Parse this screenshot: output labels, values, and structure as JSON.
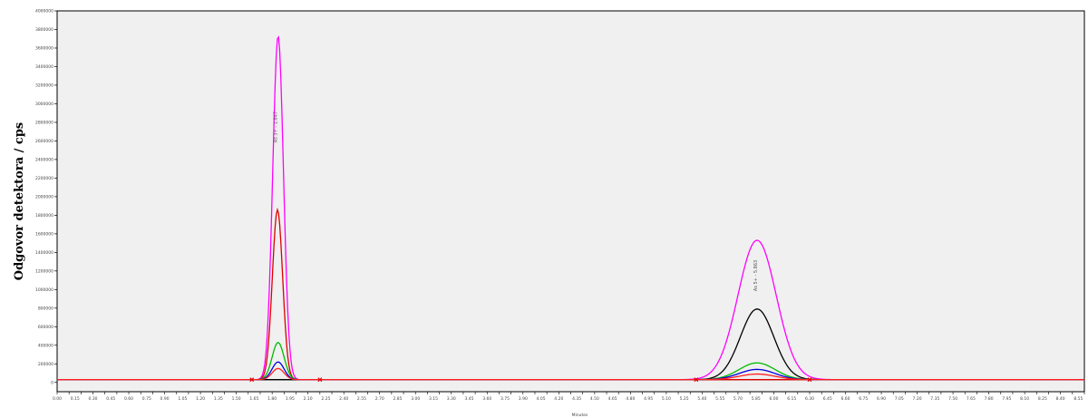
{
  "chart_data": {
    "type": "line",
    "title": "",
    "ylabel": "Odgovor detektora / cps",
    "xlabel": "Minutes",
    "ylim": [
      -100000,
      4000000
    ],
    "y_ticks": [
      0,
      200000,
      400000,
      600000,
      800000,
      1000000,
      1200000,
      1400000,
      1600000,
      1800000,
      2000000,
      2200000,
      2400000,
      2600000,
      2800000,
      3000000,
      3200000,
      3400000,
      3600000,
      3800000,
      4000000
    ],
    "xlim": [
      0,
      8.6
    ],
    "x_tick_step": 0.1,
    "x_label_step": 0.15,
    "grid": false,
    "legend": "none",
    "peak_labels": [
      {
        "text": "As 3+ - 1.847",
        "x": 1.84,
        "y": 2750000
      },
      {
        "text": "As 5+ - 5.863",
        "x": 5.86,
        "y": 1150000
      }
    ],
    "series": [
      {
        "color": "#ff00ff",
        "peaks": [
          {
            "x": 1.85,
            "height": 3700000,
            "width": 0.045
          },
          {
            "x": 5.86,
            "height": 1500000,
            "width": 0.16
          }
        ]
      },
      {
        "color": "#dd0000",
        "peaks": [
          {
            "x": 1.845,
            "height": 1830000,
            "width": 0.043
          }
        ]
      },
      {
        "color": "#000000",
        "peaks": [
          {
            "x": 5.86,
            "height": 760000,
            "width": 0.14
          }
        ]
      },
      {
        "color": "#00bb00",
        "peaks": [
          {
            "x": 1.85,
            "height": 400000,
            "width": 0.05
          },
          {
            "x": 5.86,
            "height": 180000,
            "width": 0.15
          }
        ]
      },
      {
        "color": "#0000dd",
        "peaks": [
          {
            "x": 1.85,
            "height": 190000,
            "width": 0.05
          },
          {
            "x": 5.86,
            "height": 110000,
            "width": 0.15
          }
        ]
      },
      {
        "color": "#ff2020",
        "peaks": [
          {
            "x": 1.85,
            "height": 120000,
            "width": 0.05
          },
          {
            "x": 5.86,
            "height": 60000,
            "width": 0.15
          }
        ]
      }
    ],
    "baseline_y": 30000,
    "integration_marks": [
      {
        "x": 1.63,
        "color": "#dd0000"
      },
      {
        "x": 2.2,
        "color": "#dd0000"
      },
      {
        "x": 5.35,
        "color": "#dd0000"
      },
      {
        "x": 6.3,
        "color": "#dd0000"
      }
    ]
  },
  "colors": {
    "plot_background": "#f0f0f0",
    "frame": "#000000",
    "baseline": "#000000"
  }
}
